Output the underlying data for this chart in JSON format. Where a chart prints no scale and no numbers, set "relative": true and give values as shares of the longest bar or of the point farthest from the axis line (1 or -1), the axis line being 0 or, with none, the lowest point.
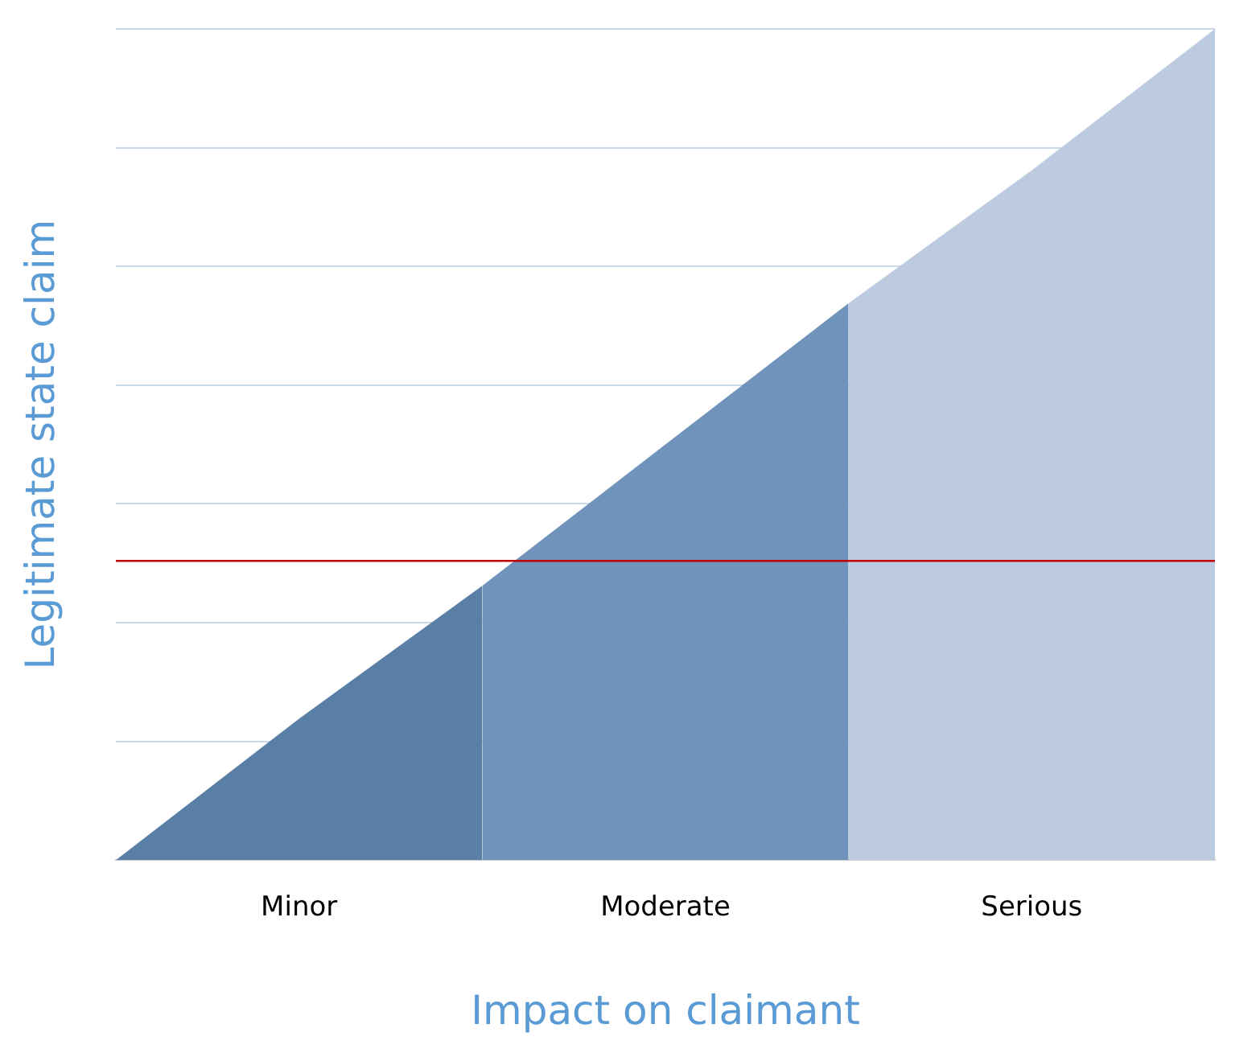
{
  "chart_data": {
    "type": "area",
    "relative": true,
    "xlabel": "Impact on claimant",
    "ylabel": "Legitimate state claim",
    "categories": [
      null,
      "Minor",
      null,
      "Moderate",
      null,
      "Serious",
      null
    ],
    "series": [
      {
        "color": "#5a7fa6",
        "values": [
          0,
          0.17,
          0.33,
          null,
          null,
          null,
          null
        ]
      },
      {
        "color": "#6f93bb",
        "values": [
          null,
          null,
          0.33,
          0.5,
          0.67,
          null,
          null
        ]
      },
      {
        "color": "#bccbe0",
        "values": [
          null,
          null,
          null,
          null,
          0.67,
          0.83,
          1
        ]
      }
    ],
    "ref_lines": [
      {
        "axis": "y",
        "value": 0.36,
        "color": "#c00000"
      }
    ],
    "grid": "y",
    "legend": false
  }
}
